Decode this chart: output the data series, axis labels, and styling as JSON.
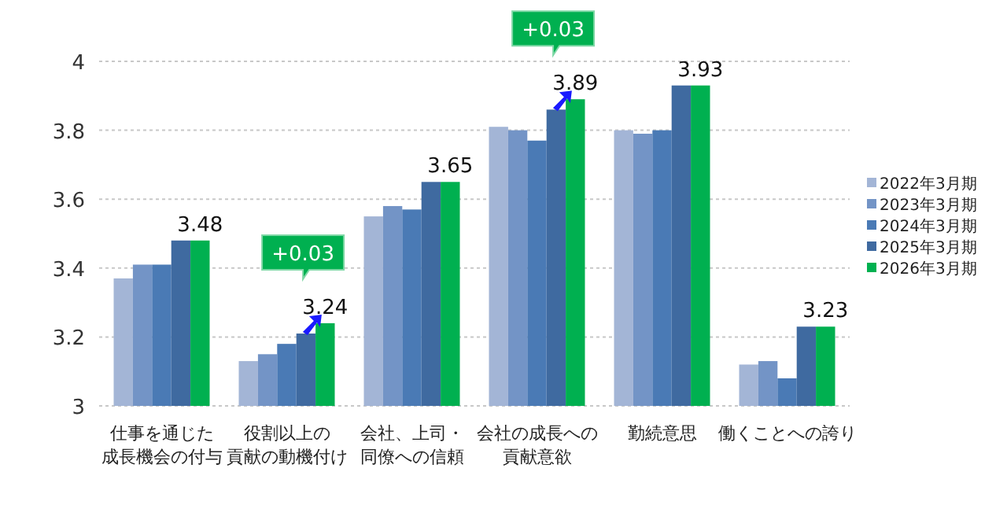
{
  "chart_data": {
    "type": "bar",
    "categories": [
      "仕事を通じた成長機会の付与",
      "役割以上の貢献の動機付け",
      "会社、上司・同僚への信頼",
      "会社の成長への貢献意欲",
      "勤続意思",
      "働くことへの誇り"
    ],
    "series": [
      {
        "name": "2022年3月期",
        "color": "#a3b5d6",
        "values": [
          3.37,
          3.13,
          3.55,
          3.81,
          3.8,
          3.12
        ]
      },
      {
        "name": "2023年3月期",
        "color": "#7394c6",
        "values": [
          3.41,
          3.15,
          3.58,
          3.8,
          3.79,
          3.13
        ]
      },
      {
        "name": "2024年3月期",
        "color": "#4a7ab5",
        "values": [
          3.41,
          3.18,
          3.57,
          3.77,
          3.8,
          3.08
        ]
      },
      {
        "name": "2025年3月期",
        "color": "#3f6aa0",
        "values": [
          3.48,
          3.21,
          3.65,
          3.86,
          3.93,
          3.23
        ]
      },
      {
        "name": "2026年3月期",
        "color": "#00b050",
        "values": [
          3.48,
          3.24,
          3.65,
          3.89,
          3.93,
          3.23
        ],
        "value_labels": [
          "3.48",
          "3.24",
          "3.65",
          "3.89",
          "3.93",
          "3.23"
        ]
      }
    ],
    "ylim": [
      3,
      4
    ],
    "yticks": [
      3,
      3.2,
      3.4,
      3.6,
      3.8,
      4
    ],
    "grid": "y",
    "legend": "right",
    "annotations": [
      "+0.03",
      "+0.03"
    ]
  }
}
